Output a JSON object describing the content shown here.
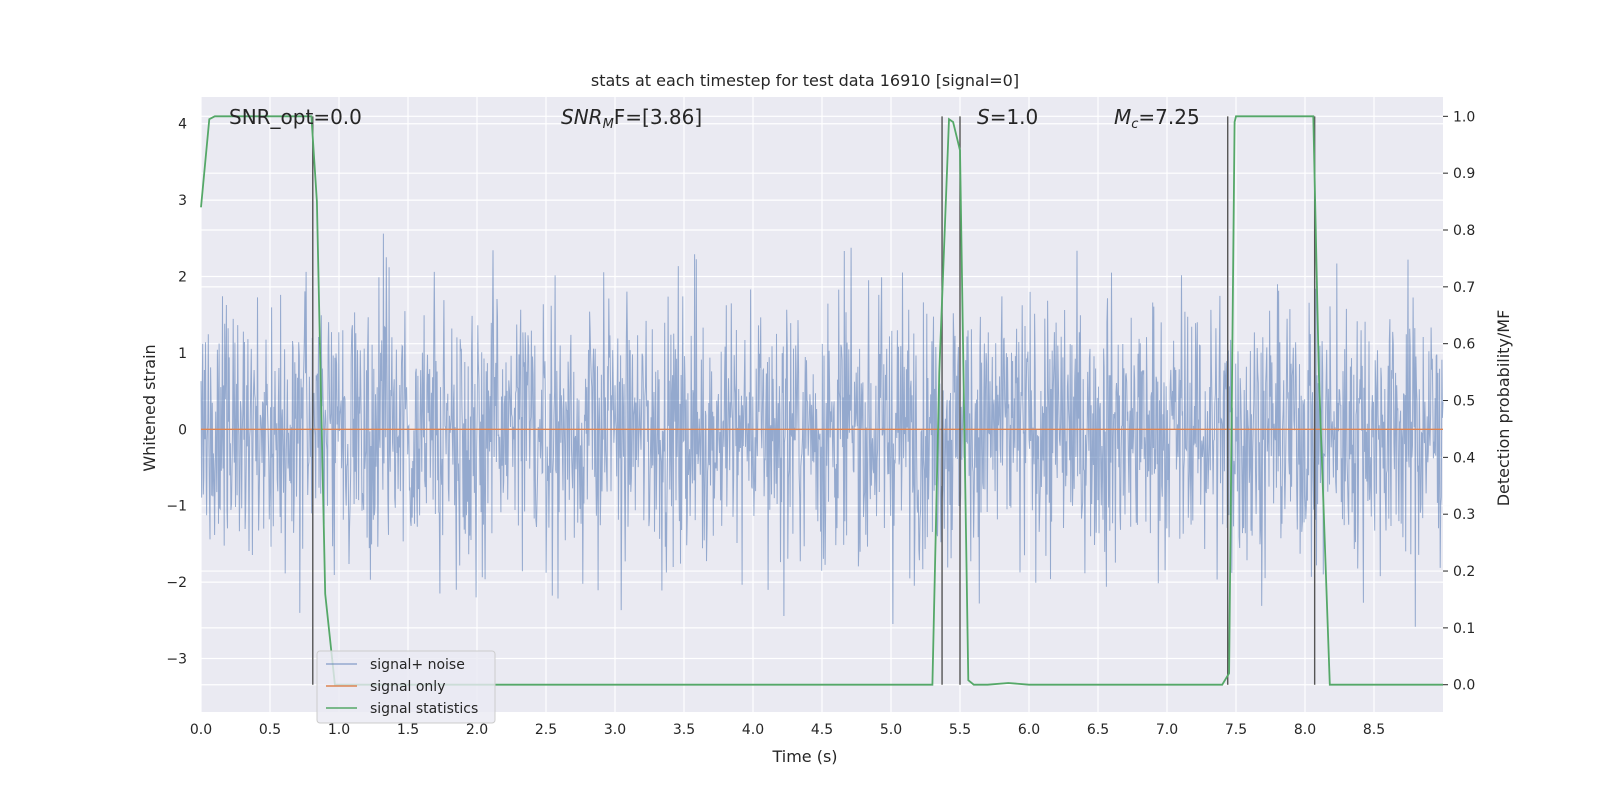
{
  "chart_data": {
    "type": "line",
    "title": "stats at each timestep for test data 16910 [signal=0]",
    "xlabel": "Time (s)",
    "ylabel": "Whitened strain",
    "y2label": "Detection probability/MF",
    "xlim": [
      0.0,
      9.0
    ],
    "ylim": [
      -3.7,
      4.35
    ],
    "y2lim": [
      -0.048,
      1.034
    ],
    "xticks": [
      "0.0",
      "0.5",
      "1.0",
      "1.5",
      "2.0",
      "2.5",
      "3.0",
      "3.5",
      "4.0",
      "4.5",
      "5.0",
      "5.5",
      "6.0",
      "6.5",
      "7.0",
      "7.5",
      "8.0",
      "8.5"
    ],
    "yticks": [
      "−3",
      "−2",
      "−1",
      "0",
      "1",
      "2",
      "3",
      "4"
    ],
    "y2ticks": [
      "0.0",
      "0.1",
      "0.2",
      "0.3",
      "0.4",
      "0.5",
      "0.6",
      "0.7",
      "0.8",
      "0.9",
      "1.0"
    ],
    "annotations": {
      "snr_opt": "SNR_opt=0.0",
      "snr_mf_base": "SNR",
      "snr_mf_sub": "M",
      "snr_mf_rest": "F=[3.86]",
      "s_var": "S",
      "s_rest": "=1.0",
      "mc_var": "M",
      "mc_sub": "c",
      "mc_rest": "=7.25"
    },
    "grid": true,
    "legend_position": "lower-left",
    "series": [
      {
        "name": "signal+ noise",
        "color": "#4c72b0",
        "alpha": 0.55,
        "axis": "left",
        "description_rule": "dense noise, roughly between -3.5 and 3.6",
        "sample_count": 2200,
        "min": -3.35,
        "max": 4.0
      },
      {
        "name": "signal only",
        "color": "#dd8452",
        "axis": "left",
        "x": [
          0.0,
          9.0
        ],
        "y": [
          0.0,
          0.0
        ]
      },
      {
        "name": "signal statistics",
        "color": "#55a868",
        "axis": "right",
        "x": [
          0.0,
          0.06,
          0.1,
          0.2,
          0.5,
          0.8,
          0.84,
          0.9,
          0.97,
          1.0,
          2.0,
          3.0,
          4.0,
          5.0,
          5.3,
          5.35,
          5.42,
          5.45,
          5.5,
          5.56,
          5.6,
          5.7,
          5.85,
          6.0,
          7.0,
          7.4,
          7.45,
          7.49,
          7.5,
          7.7,
          8.0,
          8.06,
          8.1,
          8.18,
          8.5,
          9.0
        ],
        "y": [
          0.84,
          0.995,
          1.0,
          1.0,
          1.0,
          1.0,
          0.85,
          0.16,
          0.0,
          0.0,
          0.0,
          0.0,
          0.0,
          0.0,
          0.0,
          0.55,
          0.995,
          0.99,
          0.94,
          0.008,
          0.0,
          0.0,
          0.003,
          0.0,
          0.0,
          0.0,
          0.02,
          0.99,
          1.0,
          1.0,
          1.0,
          1.0,
          0.55,
          0.0,
          0.0,
          0.0
        ]
      }
    ],
    "markers": {
      "color": "#555555",
      "x": [
        0.81,
        5.37,
        5.5,
        7.44,
        8.07
      ],
      "label": "black vertical lines"
    }
  }
}
